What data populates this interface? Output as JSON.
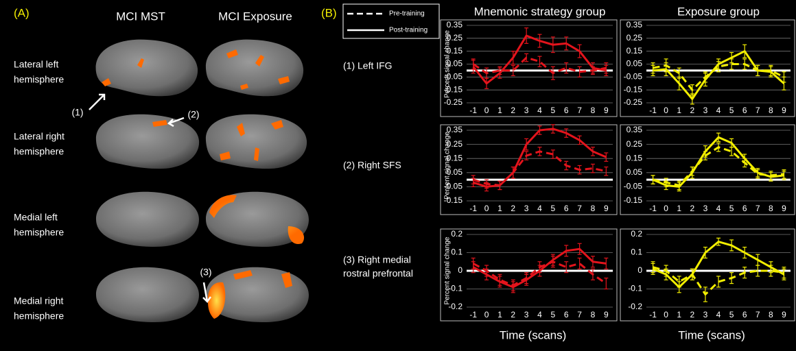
{
  "panel_a": {
    "label": "(A)",
    "columns": [
      "MCI MST",
      "MCI Exposure"
    ],
    "rows": [
      [
        "Lateral left",
        "hemisphere"
      ],
      [
        "Lateral right",
        "hemisphere"
      ],
      [
        "Medial left",
        "hemisphere"
      ],
      [
        "Medial right",
        "hemisphere"
      ]
    ],
    "annotations": [
      "(1)",
      "(2)",
      "(3)"
    ]
  },
  "panel_b": {
    "label": "(B)",
    "legend": [
      "Pre-training",
      "Post-training"
    ],
    "regions": [
      [
        "(1) Left IFG"
      ],
      [
        "(2) Right SFS"
      ],
      [
        "(3) Right medial",
        "rostral prefrontal"
      ]
    ]
  },
  "chart_data": [
    {
      "type": "line",
      "title": "Mnemonic strategy group",
      "y_label": "Percent signal change",
      "grid": true,
      "zero_line": true,
      "x": [
        -1,
        0,
        1,
        2,
        3,
        4,
        5,
        6,
        7,
        8,
        9
      ],
      "xlim": [
        -1.5,
        9.5
      ],
      "xticks": [
        -1,
        0,
        1,
        2,
        3,
        4,
        5,
        6,
        7,
        8,
        9
      ],
      "ylim": [
        -0.25,
        0.35
      ],
      "yticks": [
        0.35,
        0.25,
        0.15,
        0.05,
        -0.05,
        -0.15,
        -0.25
      ],
      "series": [
        {
          "color": "#e3141c",
          "dash": true,
          "values": [
            0.05,
            -0.02,
            0.0,
            0.0,
            0.1,
            0.07,
            -0.02,
            0.02,
            -0.01,
            0.0,
            0.02
          ],
          "errors": [
            0.04,
            0.04,
            0.03,
            0.04,
            0.03,
            0.04,
            0.05,
            0.04,
            0.04,
            0.03,
            0.04
          ]
        },
        {
          "color": "#e3141c",
          "dash": false,
          "values": [
            0.03,
            -0.1,
            -0.02,
            0.1,
            0.27,
            0.23,
            0.2,
            0.21,
            0.15,
            0.02,
            0.0
          ],
          "errors": [
            0.05,
            0.04,
            0.04,
            0.05,
            0.06,
            0.05,
            0.06,
            0.05,
            0.05,
            0.04,
            0.04
          ]
        }
      ]
    },
    {
      "type": "line",
      "title": "Exposure group",
      "grid": true,
      "zero_line": true,
      "x": [
        -1,
        0,
        1,
        2,
        3,
        4,
        5,
        6,
        7,
        8,
        9
      ],
      "xlim": [
        -1.5,
        9.5
      ],
      "xticks": [
        -1,
        0,
        1,
        2,
        3,
        4,
        5,
        6,
        7,
        8,
        9
      ],
      "ylim": [
        -0.25,
        0.35
      ],
      "yticks": [
        0.35,
        0.25,
        0.15,
        0.05,
        -0.05,
        -0.15,
        -0.25
      ],
      "series": [
        {
          "color": "#f2ee00",
          "dash": true,
          "values": [
            0.02,
            0.04,
            -0.02,
            -0.15,
            -0.05,
            0.03,
            0.05,
            0.05,
            0.0,
            0.0,
            -0.05
          ],
          "errors": [
            0.04,
            0.05,
            0.04,
            0.04,
            0.04,
            0.04,
            0.04,
            0.04,
            0.04,
            0.04,
            0.04
          ]
        },
        {
          "color": "#f2ee00",
          "dash": false,
          "values": [
            0.0,
            0.01,
            -0.1,
            -0.22,
            -0.07,
            0.05,
            0.1,
            0.15,
            0.0,
            -0.01,
            -0.1
          ],
          "errors": [
            0.04,
            0.05,
            0.05,
            0.04,
            0.05,
            0.04,
            0.04,
            0.05,
            0.04,
            0.04,
            0.05
          ]
        }
      ]
    },
    {
      "type": "line",
      "y_label": "Percent signal change",
      "grid": true,
      "zero_line": true,
      "x": [
        -1,
        0,
        1,
        2,
        3,
        4,
        5,
        6,
        7,
        8,
        9
      ],
      "xlim": [
        -1.5,
        9.5
      ],
      "xticks": [
        -1,
        0,
        1,
        2,
        3,
        4,
        5,
        6,
        7,
        8,
        9
      ],
      "ylim": [
        -0.15,
        0.35
      ],
      "yticks": [
        0.35,
        0.25,
        0.15,
        0.05,
        -0.05,
        -0.15
      ],
      "series": [
        {
          "color": "#e3141c",
          "dash": true,
          "values": [
            0.0,
            -0.03,
            -0.04,
            0.05,
            0.17,
            0.2,
            0.18,
            0.1,
            0.07,
            0.08,
            0.06
          ],
          "errors": [
            0.03,
            0.03,
            0.03,
            0.04,
            0.03,
            0.03,
            0.03,
            0.03,
            0.03,
            0.03,
            0.03
          ]
        },
        {
          "color": "#e3141c",
          "dash": false,
          "values": [
            -0.02,
            -0.05,
            -0.04,
            0.05,
            0.25,
            0.35,
            0.36,
            0.33,
            0.28,
            0.2,
            0.16
          ],
          "errors": [
            0.03,
            0.03,
            0.03,
            0.04,
            0.04,
            0.03,
            0.03,
            0.03,
            0.03,
            0.03,
            0.03
          ]
        }
      ]
    },
    {
      "type": "line",
      "grid": true,
      "zero_line": true,
      "x": [
        -1,
        0,
        1,
        2,
        3,
        4,
        5,
        6,
        7,
        8,
        9
      ],
      "xlim": [
        -1.5,
        9.5
      ],
      "xticks": [
        -1,
        0,
        1,
        2,
        3,
        4,
        5,
        6,
        7,
        8,
        9
      ],
      "ylim": [
        -0.15,
        0.35
      ],
      "yticks": [
        0.35,
        0.25,
        0.15,
        0.05,
        -0.05,
        -0.15
      ],
      "series": [
        {
          "color": "#f2ee00",
          "dash": true,
          "values": [
            0.0,
            -0.02,
            -0.04,
            0.06,
            0.17,
            0.23,
            0.2,
            0.12,
            0.04,
            0.03,
            0.04
          ],
          "errors": [
            0.03,
            0.03,
            0.03,
            0.03,
            0.03,
            0.03,
            0.03,
            0.03,
            0.03,
            0.03,
            0.03
          ]
        },
        {
          "color": "#f2ee00",
          "dash": false,
          "values": [
            0.0,
            -0.04,
            -0.05,
            0.05,
            0.2,
            0.3,
            0.26,
            0.15,
            0.05,
            0.02,
            0.03
          ],
          "errors": [
            0.03,
            0.03,
            0.03,
            0.04,
            0.04,
            0.03,
            0.03,
            0.03,
            0.03,
            0.03,
            0.03
          ]
        }
      ]
    },
    {
      "type": "line",
      "y_label": "Percent signal change",
      "x_label": "Time (scans)",
      "grid": true,
      "zero_line": true,
      "x": [
        -1,
        0,
        1,
        2,
        3,
        4,
        5,
        6,
        7,
        8,
        9
      ],
      "xlim": [
        -1.5,
        9.5
      ],
      "xticks": [
        -1,
        0,
        1,
        2,
        3,
        4,
        5,
        6,
        7,
        8,
        9
      ],
      "ylim": [
        -0.2,
        0.2
      ],
      "yticks": [
        0.2,
        0.1,
        0,
        -0.1,
        -0.2
      ],
      "series": [
        {
          "color": "#e3141c",
          "dash": true,
          "values": [
            0.04,
            0.0,
            -0.05,
            -0.08,
            -0.04,
            0.02,
            0.05,
            0.02,
            0.04,
            -0.02,
            -0.07
          ],
          "errors": [
            0.03,
            0.03,
            0.03,
            0.03,
            0.03,
            0.03,
            0.03,
            0.03,
            0.03,
            0.03,
            0.03
          ]
        },
        {
          "color": "#e3141c",
          "dash": false,
          "values": [
            0.02,
            -0.02,
            -0.06,
            -0.09,
            -0.05,
            0.0,
            0.06,
            0.11,
            0.12,
            0.05,
            0.04
          ],
          "errors": [
            0.03,
            0.03,
            0.03,
            0.03,
            0.03,
            0.03,
            0.03,
            0.03,
            0.03,
            0.03,
            0.03
          ]
        }
      ]
    },
    {
      "type": "line",
      "x_label": "Time (scans)",
      "grid": true,
      "zero_line": true,
      "x": [
        -1,
        0,
        1,
        2,
        3,
        4,
        5,
        6,
        7,
        8,
        9
      ],
      "xlim": [
        -1.5,
        9.5
      ],
      "xticks": [
        -1,
        0,
        1,
        2,
        3,
        4,
        5,
        6,
        7,
        8,
        9
      ],
      "ylim": [
        -0.2,
        0.2
      ],
      "yticks": [
        0.2,
        0.1,
        0,
        -0.1,
        -0.2
      ],
      "series": [
        {
          "color": "#f2ee00",
          "dash": true,
          "values": [
            0.02,
            0.0,
            -0.06,
            -0.02,
            -0.13,
            -0.06,
            -0.04,
            -0.01,
            0.0,
            0.0,
            -0.01
          ],
          "errors": [
            0.03,
            0.03,
            0.03,
            0.03,
            0.04,
            0.03,
            0.03,
            0.03,
            0.03,
            0.03,
            0.03
          ]
        },
        {
          "color": "#f2ee00",
          "dash": false,
          "values": [
            0.01,
            -0.02,
            -0.09,
            -0.02,
            0.1,
            0.16,
            0.14,
            0.1,
            0.06,
            0.02,
            -0.02
          ],
          "errors": [
            0.03,
            0.03,
            0.03,
            0.03,
            0.03,
            0.02,
            0.03,
            0.03,
            0.03,
            0.03,
            0.03
          ]
        }
      ]
    }
  ]
}
